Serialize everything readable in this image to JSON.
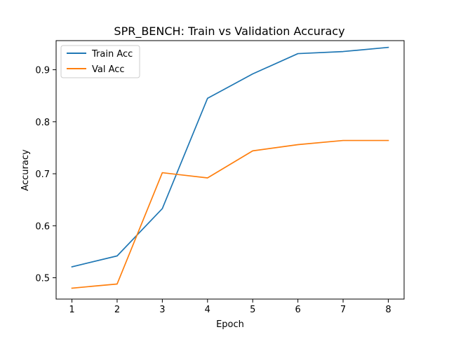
{
  "chart_data": {
    "type": "line",
    "title": "SPR_BENCH: Train vs Validation Accuracy",
    "xlabel": "Epoch",
    "ylabel": "Accuracy",
    "x": [
      1,
      2,
      3,
      4,
      5,
      6,
      7,
      8
    ],
    "xticks": [
      "1",
      "2",
      "3",
      "4",
      "5",
      "6",
      "7",
      "8"
    ],
    "yticks": [
      "0.5",
      "0.6",
      "0.7",
      "0.8",
      "0.9"
    ],
    "xlim": [
      0.65,
      8.35
    ],
    "ylim": [
      0.459,
      0.956
    ],
    "grid": false,
    "legend_position": "top-left",
    "series": [
      {
        "name": "Train Acc",
        "color": "#1f77b4",
        "values": [
          0.521,
          0.542,
          0.633,
          0.845,
          0.892,
          0.931,
          0.935,
          0.943
        ]
      },
      {
        "name": "Val Acc",
        "color": "#ff7f0e",
        "values": [
          0.48,
          0.488,
          0.702,
          0.692,
          0.744,
          0.756,
          0.764,
          0.764
        ]
      }
    ]
  }
}
